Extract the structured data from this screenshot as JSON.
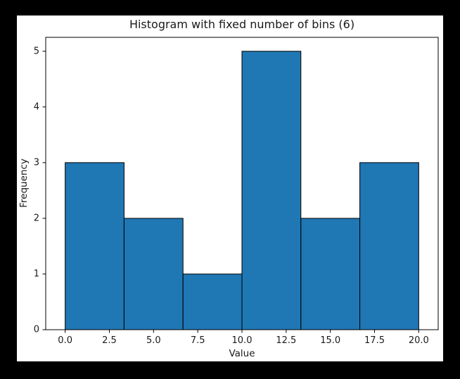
{
  "window": {
    "frame_color": "#000000",
    "figure_background": "#ffffff"
  },
  "chart_data": {
    "type": "bar",
    "subtype": "histogram",
    "title": "Histogram with fixed number of bins (6)",
    "xlabel": "Value",
    "ylabel": "Frequency",
    "num_bins": 6,
    "bin_edges": [
      0,
      3.3333,
      6.6667,
      10,
      13.3333,
      16.6667,
      20
    ],
    "frequencies": [
      3,
      2,
      1,
      5,
      2,
      3
    ],
    "xtick_labels": [
      "0.0",
      "2.5",
      "5.0",
      "7.5",
      "10.0",
      "12.5",
      "15.0",
      "17.5",
      "20.0"
    ],
    "xtick_values": [
      0,
      2.5,
      5,
      7.5,
      10,
      12.5,
      15,
      17.5,
      20
    ],
    "ytick_labels": [
      "0",
      "1",
      "2",
      "3",
      "4",
      "5"
    ],
    "ytick_values": [
      0,
      1,
      2,
      3,
      4,
      5
    ],
    "xlim": [
      -1.1,
      21.1
    ],
    "ylim": [
      0,
      5.25
    ],
    "grid": false,
    "legend": null,
    "bar_color": "#1f77b4",
    "bar_edge_color": "#000000",
    "axis_color": "#000000",
    "text_color": "#1a1a1a"
  }
}
